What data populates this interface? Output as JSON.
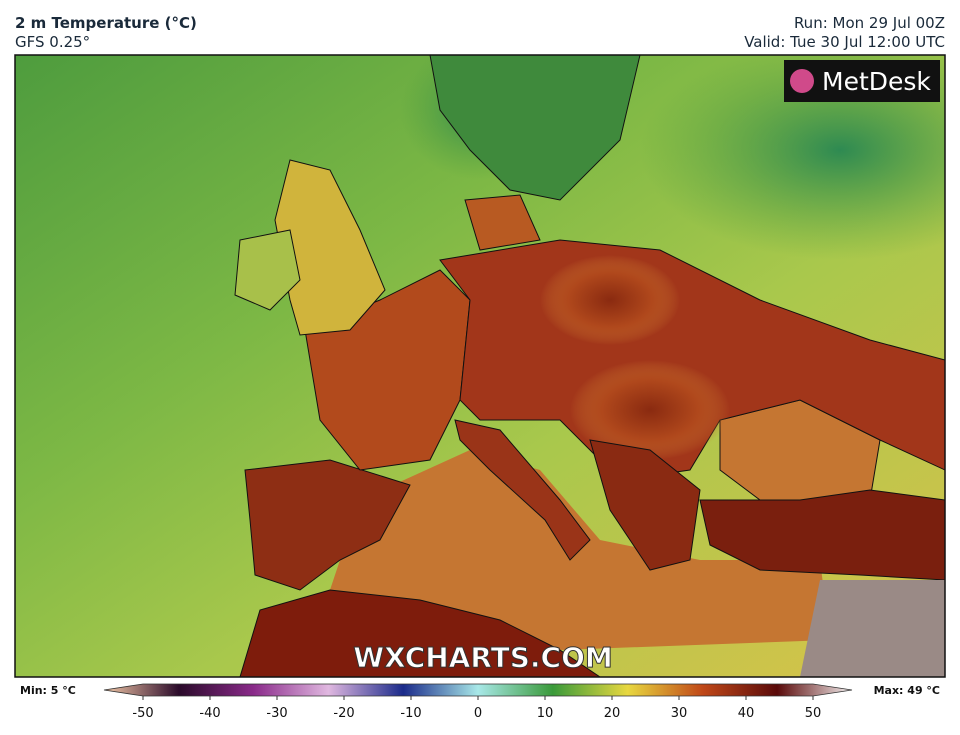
{
  "header": {
    "title": "2 m Temperature (°C)",
    "subtitle": "GFS 0.25°",
    "run": "Run: Mon 29 Jul 00Z",
    "valid": "Valid: Tue 30 Jul 12:00 UTC"
  },
  "map": {
    "logo": "MetDesk",
    "watermark": "WXCHARTS.COM"
  },
  "colorbar": {
    "min_label": "Min: 5 °C",
    "max_label": "Max: 49 °C",
    "lim": [
      -50,
      50
    ],
    "ticks": [
      -50,
      -40,
      -30,
      -20,
      -10,
      0,
      10,
      20,
      30,
      40,
      50
    ]
  }
}
